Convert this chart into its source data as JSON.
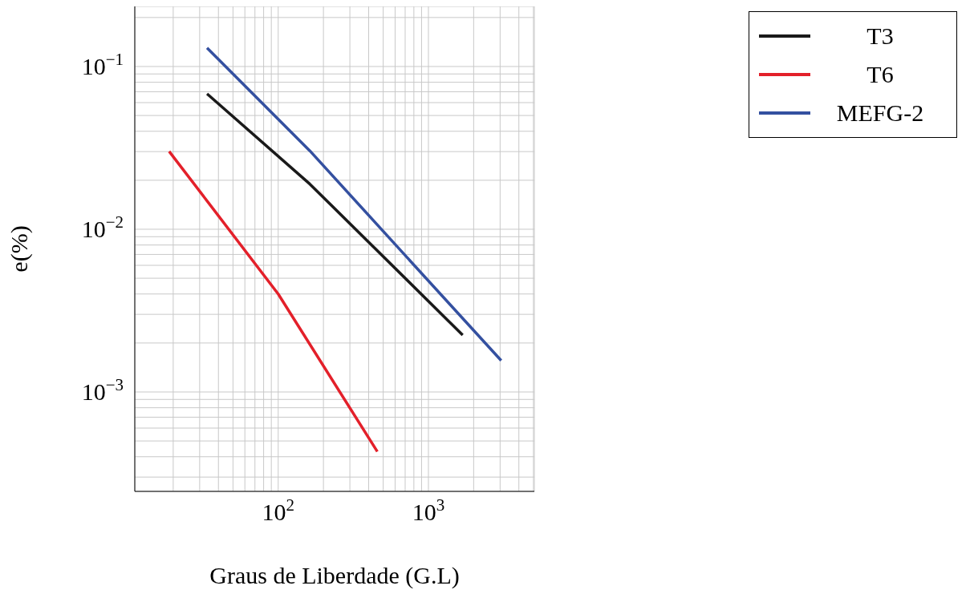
{
  "chart_data": {
    "type": "line",
    "xlabel": "Graus de Liberdade (G.L)",
    "ylabel": "e(%)",
    "log": "xy",
    "grid": true,
    "legend": "top right",
    "marker": "none",
    "line_style": "solid",
    "xlim": [
      11.1,
      5070
    ],
    "ylim": [
      0.000245,
      0.234
    ],
    "xticks": [
      {
        "value": 20,
        "label": null
      },
      {
        "value": 30,
        "label": null
      },
      {
        "value": 40,
        "label": null
      },
      {
        "value": 50,
        "label": null
      },
      {
        "value": 60,
        "label": null
      },
      {
        "value": 70,
        "label": null
      },
      {
        "value": 80,
        "label": null
      },
      {
        "value": 90,
        "label": null
      },
      {
        "value": 100,
        "label": "10$^{2}$"
      },
      {
        "value": 200,
        "label": null
      },
      {
        "value": 300,
        "label": null
      },
      {
        "value": 400,
        "label": null
      },
      {
        "value": 500,
        "label": null
      },
      {
        "value": 600,
        "label": null
      },
      {
        "value": 700,
        "label": null
      },
      {
        "value": 800,
        "label": null
      },
      {
        "value": 900,
        "label": null
      },
      {
        "value": 1000,
        "label": "10$^{3}$"
      },
      {
        "value": 2000,
        "label": null
      },
      {
        "value": 3000,
        "label": null
      },
      {
        "value": 4000,
        "label": null
      },
      {
        "value": 5000,
        "label": null
      }
    ],
    "yticks": [
      {
        "value": 0.0003,
        "label": null
      },
      {
        "value": 0.0004,
        "label": null
      },
      {
        "value": 0.0005,
        "label": null
      },
      {
        "value": 0.0006,
        "label": null
      },
      {
        "value": 0.0007,
        "label": null
      },
      {
        "value": 0.0008,
        "label": null
      },
      {
        "value": 0.0009,
        "label": null
      },
      {
        "value": 0.001,
        "label": "10$^{−3}$"
      },
      {
        "value": 0.002,
        "label": null
      },
      {
        "value": 0.003,
        "label": null
      },
      {
        "value": 0.004,
        "label": null
      },
      {
        "value": 0.005,
        "label": null
      },
      {
        "value": 0.006,
        "label": null
      },
      {
        "value": 0.007,
        "label": null
      },
      {
        "value": 0.008,
        "label": null
      },
      {
        "value": 0.009,
        "label": null
      },
      {
        "value": 0.01,
        "label": "10$^{−2}$"
      },
      {
        "value": 0.02,
        "label": null
      },
      {
        "value": 0.03,
        "label": null
      },
      {
        "value": 0.04,
        "label": null
      },
      {
        "value": 0.05,
        "label": null
      },
      {
        "value": 0.06,
        "label": null
      },
      {
        "value": 0.07,
        "label": null
      },
      {
        "value": 0.08,
        "label": null
      },
      {
        "value": 0.09,
        "label": null
      },
      {
        "value": 0.1,
        "label": "10$^{−1}$"
      },
      {
        "value": 0.2,
        "label": null
      }
    ],
    "series": [
      {
        "name": "T3",
        "color": "#1a1a1a",
        "x": [
          33.6,
          162,
          1690
        ],
        "values": [
          0.068,
          0.019,
          0.00224
        ]
      },
      {
        "name": "T6",
        "color": "#e3202a",
        "x": [
          18.8,
          100,
          457
        ],
        "values": [
          0.0301,
          0.004,
          0.00043
        ]
      },
      {
        "name": "MEFG-2",
        "color": "#3450a0",
        "x": [
          33.6,
          162,
          3050
        ],
        "values": [
          0.13,
          0.0304,
          0.00156
        ]
      }
    ]
  }
}
